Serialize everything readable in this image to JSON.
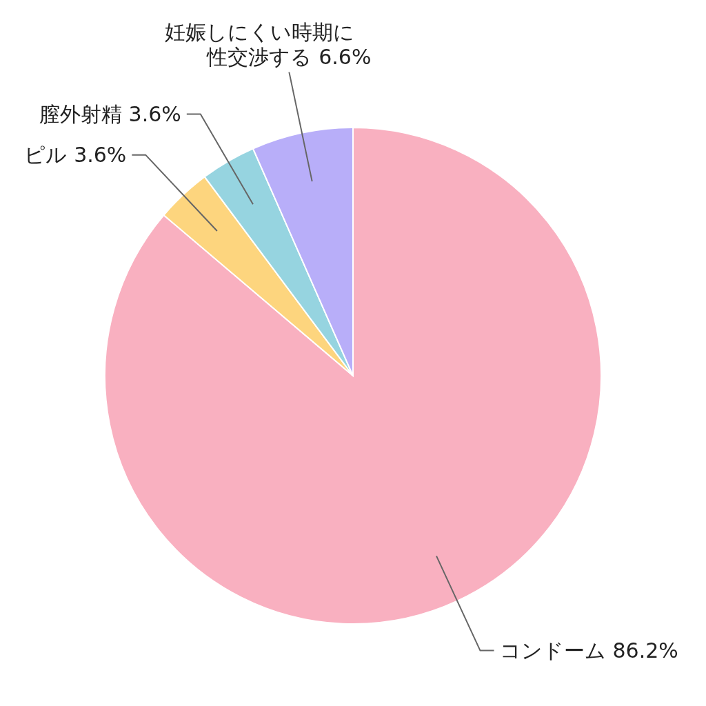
{
  "chart_data": {
    "type": "pie",
    "categories": [
      "コンドーム",
      "ピル",
      "膣外射精",
      "妊娠しにくい時期に性交渉する"
    ],
    "values": [
      86.2,
      3.6,
      3.6,
      6.6
    ],
    "colors": [
      "#f9b0c0",
      "#fdd57e",
      "#96d4e0",
      "#b8aef9"
    ],
    "value_labels": [
      "86.2%",
      "3.6%",
      "3.6%",
      "6.6%"
    ]
  }
}
